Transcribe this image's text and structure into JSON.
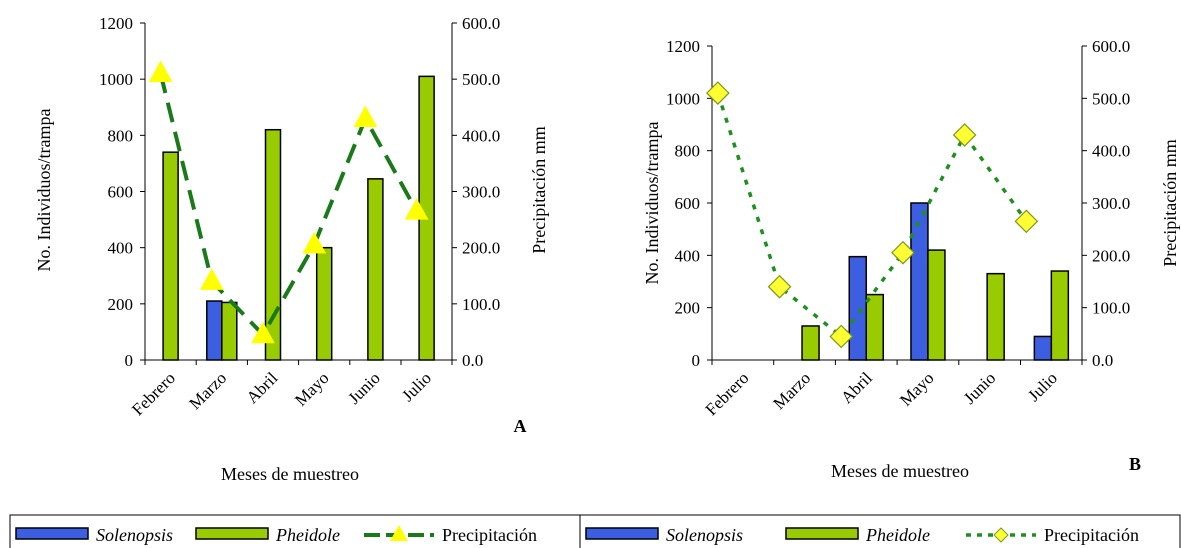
{
  "colors": {
    "solenopsis": "#3b5fe0",
    "pheidole": "#99cc00",
    "line_a": "#1a7a1a",
    "marker_a": "#ffff00",
    "line_b": "#1f8f1f",
    "marker_b": "#ffff33"
  },
  "chart_data": [
    {
      "type": "bar",
      "panel_label": "A",
      "categories": [
        "Febrero",
        "Marzo",
        "Abril",
        "Mayo",
        "Junio",
        "Julio"
      ],
      "xlabel": "Meses de muestreo",
      "ylabel": "No. Individuos/trampa",
      "ylabel_right": "Precipitación mm",
      "ylim": [
        0,
        1200
      ],
      "ylim_right": [
        0,
        600
      ],
      "yticks": [
        "0",
        "200",
        "400",
        "600",
        "800",
        "1000",
        "1200"
      ],
      "yticks_right": [
        "0.0",
        "100.0",
        "200.0",
        "300.0",
        "400.0",
        "500.0",
        "600.0"
      ],
      "series": [
        {
          "name": "Solenopsis",
          "kind": "bar",
          "axis": "left",
          "values": [
            0,
            210,
            0,
            0,
            0,
            0
          ]
        },
        {
          "name": "Pheidole",
          "kind": "bar",
          "axis": "left",
          "values": [
            740,
            205,
            820,
            400,
            645,
            1010
          ]
        },
        {
          "name": "Precipitación",
          "kind": "line",
          "axis": "right",
          "line_style": "dashed",
          "marker": "triangle",
          "values": [
            510,
            140,
            45,
            205,
            430,
            265
          ]
        }
      ],
      "legend": {
        "position": "bottom",
        "entries": [
          "Solenopsis",
          "Pheidole",
          "Precipitación"
        ]
      }
    },
    {
      "type": "bar",
      "panel_label": "B",
      "categories": [
        "Febrero",
        "Marzo",
        "Abril",
        "Mayo",
        "Junio",
        "Julio"
      ],
      "xlabel": "Meses de muestreo",
      "ylabel": "No. Individuos/trampa",
      "ylabel_right": "Precipitación mm",
      "ylim": [
        0,
        1200
      ],
      "ylim_right": [
        0,
        600
      ],
      "yticks": [
        "0",
        "200",
        "400",
        "600",
        "800",
        "1000",
        "1200"
      ],
      "yticks_right": [
        "0.0",
        "100.0",
        "200.0",
        "300.0",
        "400.0",
        "500.0",
        "600.0"
      ],
      "series": [
        {
          "name": "Solenopsis",
          "kind": "bar",
          "axis": "left",
          "values": [
            0,
            0,
            395,
            600,
            0,
            90
          ]
        },
        {
          "name": "Pheidole",
          "kind": "bar",
          "axis": "left",
          "values": [
            0,
            130,
            250,
            420,
            330,
            340
          ]
        },
        {
          "name": "Precipitación",
          "kind": "line",
          "axis": "right",
          "line_style": "dotted",
          "marker": "diamond",
          "values": [
            510,
            140,
            45,
            205,
            430,
            265
          ]
        }
      ],
      "legend": {
        "position": "bottom",
        "entries": [
          "Solenopsis",
          "Pheidole",
          "Precipitación"
        ]
      }
    }
  ]
}
